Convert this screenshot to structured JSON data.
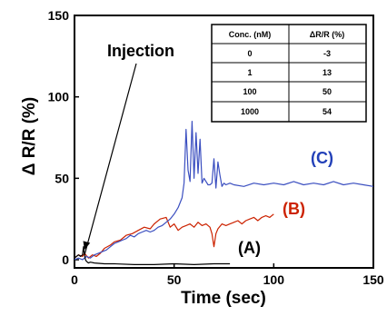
{
  "chart_data": {
    "type": "line",
    "xlabel": "Time (sec)",
    "ylabel": "Δ R/R (%)",
    "xlim": [
      0,
      150
    ],
    "ylim": [
      -5,
      150
    ],
    "x_ticks": [
      0,
      50,
      100,
      150
    ],
    "y_ticks": [
      0,
      50,
      100,
      150
    ],
    "grid": false,
    "annotations": {
      "injection": {
        "text": "Injection",
        "x": 5,
        "y": 5
      }
    },
    "series": [
      {
        "name": "(A)",
        "color": "#000000",
        "label_color": "#000000",
        "x": [
          0,
          1,
          2,
          3,
          4,
          4.5,
          5,
          5.5,
          6,
          7,
          8,
          10,
          15,
          20,
          30,
          40,
          50,
          60,
          70,
          78
        ],
        "y": [
          1,
          2,
          3,
          2,
          3,
          8,
          3,
          0,
          -1,
          -2,
          -1.5,
          -2,
          -2.5,
          -2.5,
          -3,
          -3,
          -2.5,
          -3,
          -2.5,
          -2.5
        ]
      },
      {
        "name": "(B)",
        "color": "#cc2200",
        "label_color": "#cc2200",
        "x": [
          0,
          2,
          4,
          5,
          7,
          9,
          11,
          13,
          15,
          18,
          20,
          23,
          26,
          29,
          32,
          35,
          38,
          40,
          43,
          46,
          48,
          50,
          52,
          54,
          56,
          58,
          60,
          62,
          64,
          66,
          68,
          69,
          70,
          71,
          72,
          74,
          76,
          78,
          80,
          82,
          84,
          86,
          88,
          90,
          92,
          94,
          96,
          98,
          100
        ],
        "y": [
          1,
          3,
          2,
          4,
          1,
          3,
          2,
          4,
          7,
          9,
          11,
          12,
          15,
          16,
          18,
          20,
          19,
          22,
          25,
          26,
          20,
          22,
          18,
          20,
          21,
          22,
          20,
          23,
          21,
          22,
          20,
          16,
          8,
          16,
          19,
          22,
          21,
          22,
          23,
          24,
          22,
          24,
          25,
          26,
          24,
          26,
          27,
          26,
          28
        ]
      },
      {
        "name": "(C)",
        "color": "#3b4fc0",
        "label_color": "#2240b8",
        "x": [
          0,
          2,
          4,
          6,
          8,
          10,
          12,
          14,
          16,
          18,
          20,
          22,
          24,
          26,
          28,
          30,
          32,
          34,
          36,
          38,
          40,
          42,
          44,
          46,
          48,
          50,
          52,
          54,
          55,
          56,
          57,
          58,
          59,
          60,
          61,
          62,
          63,
          64,
          65,
          66,
          67,
          68,
          69,
          70,
          71,
          72,
          73,
          74,
          75,
          76,
          78,
          80,
          85,
          90,
          95,
          100,
          105,
          110,
          115,
          120,
          125,
          130,
          135,
          140,
          145,
          150
        ],
        "y": [
          0,
          1,
          0,
          2,
          1,
          3,
          4,
          5,
          6,
          8,
          10,
          11,
          12,
          13,
          15,
          14,
          16,
          17,
          18,
          17,
          18,
          20,
          21,
          23,
          25,
          28,
          32,
          38,
          47,
          80,
          55,
          48,
          85,
          50,
          78,
          53,
          74,
          47,
          50,
          48,
          46,
          46,
          47,
          62,
          44,
          60,
          52,
          45,
          47,
          46,
          47,
          46,
          45,
          47,
          46,
          47,
          46,
          48,
          46,
          47,
          46,
          48,
          46,
          47,
          46,
          45
        ]
      }
    ],
    "inset_table": {
      "headers": [
        "Conc. (nM)",
        "ΔR/R (%)"
      ],
      "rows": [
        [
          "0",
          "-3"
        ],
        [
          "1",
          "13"
        ],
        [
          "100",
          "50"
        ],
        [
          "1000",
          "54"
        ]
      ]
    }
  }
}
